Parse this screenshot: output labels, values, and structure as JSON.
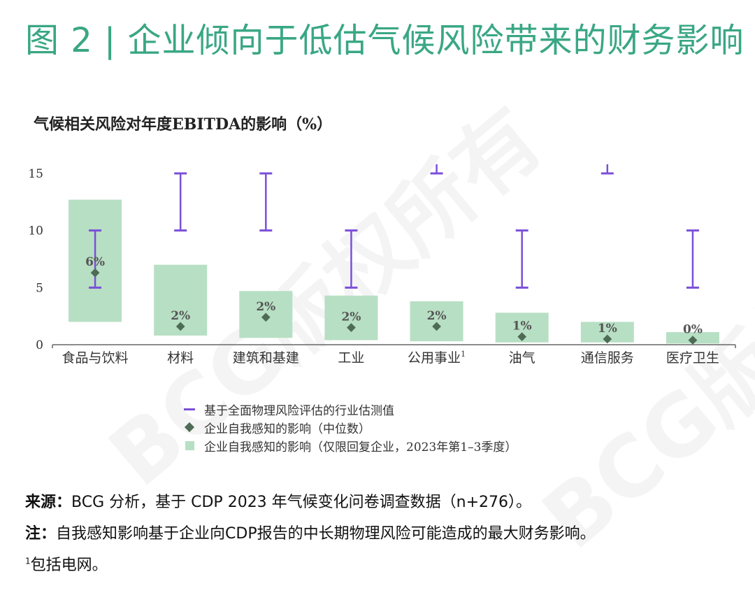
{
  "title": "图 2 | 企业倾向于低估气候风险带来的财务影响",
  "watermark": "BCG版权所有",
  "colors": {
    "title": "#3aa784",
    "bar": "#b7dfc4",
    "range": "#7b4fd8",
    "median": "#4e6b55",
    "axis": "#666666"
  },
  "legend": {
    "range": "基于全面物理风险评估的行业估测值",
    "median": "企业自我感知的影响（中位数）",
    "box": "企业自我感知的影响（仅限回复企业，2023年第1–3季度）"
  },
  "notes": {
    "source_label": "来源",
    "source_text": "BCG 分析，基于 CDP 2023 年气候变化问卷调查数据（n+276）。",
    "note_label": "注",
    "note_text": "自我感知影响基于企业向CDP报告的中长期物理风险可能造成的最大财务影响。",
    "footnote_mark": "1",
    "footnote_text": "包括电网。"
  },
  "chart_data": {
    "type": "bar",
    "title": "气候相关风险对年度EBITDA的影响（%）",
    "categories": [
      "食品与饮料",
      "材料",
      "建筑和基建",
      "工业",
      "公用事业",
      "油气",
      "通信服务",
      "医疗卫生"
    ],
    "category_footnotes": [
      "",
      "",
      "",
      "",
      "1",
      "",
      "",
      ""
    ],
    "ylim": [
      0,
      15
    ],
    "yticks": [
      0,
      5,
      10,
      15
    ],
    "series": [
      {
        "name": "企业自我感知的影响（仅限回复企业，2023年第1–3季度）",
        "kind": "floating-bar",
        "low": [
          2.0,
          0.8,
          0.6,
          0.4,
          0.3,
          0.2,
          0.2,
          0.1
        ],
        "high": [
          12.7,
          7.0,
          4.7,
          4.3,
          3.8,
          2.8,
          2.0,
          1.1
        ]
      },
      {
        "name": "企业自我感知的影响（中位数）",
        "kind": "point",
        "values": [
          6.3,
          1.6,
          2.4,
          1.5,
          1.6,
          0.7,
          0.5,
          0.4
        ],
        "labels": [
          "6%",
          "2%",
          "2%",
          "2%",
          "2%",
          "1%",
          "1%",
          "0%"
        ]
      },
      {
        "name": "基于全面物理风险评估的行业估测值",
        "kind": "range",
        "low": [
          5,
          10,
          10,
          5,
          15,
          5,
          15,
          5
        ],
        "high": [
          10,
          15,
          15,
          10,
          15.8,
          10,
          15.8,
          10
        ]
      }
    ],
    "grid": false
  }
}
